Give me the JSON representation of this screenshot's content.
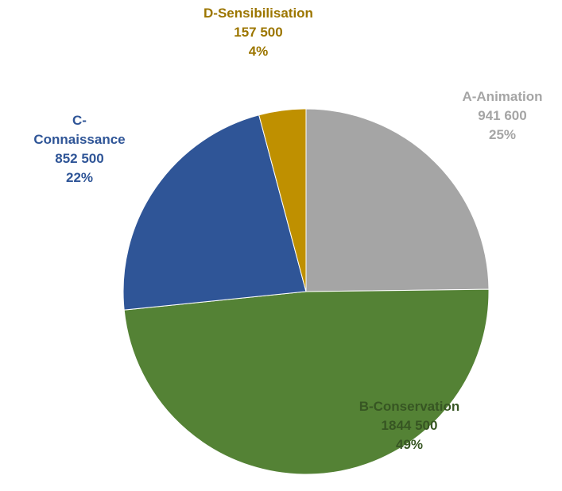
{
  "chart_data": {
    "type": "pie",
    "categories": [
      "A-Animation",
      "B-Conservation",
      "C-Connaissance",
      "D-Sensibilisation"
    ],
    "values": [
      941600,
      1844500,
      852500,
      157500
    ],
    "value_labels": [
      "941 600",
      "1844 500",
      "852 500",
      "157 500"
    ],
    "percent_labels": [
      "25%",
      "49%",
      "22%",
      "4%"
    ],
    "colors": [
      "#a5a5a5",
      "#548235",
      "#2f5597",
      "#bf9000"
    ],
    "label_colors": [
      "#a5a5a5",
      "#375623",
      "#2f5597",
      "#9c7600"
    ]
  }
}
